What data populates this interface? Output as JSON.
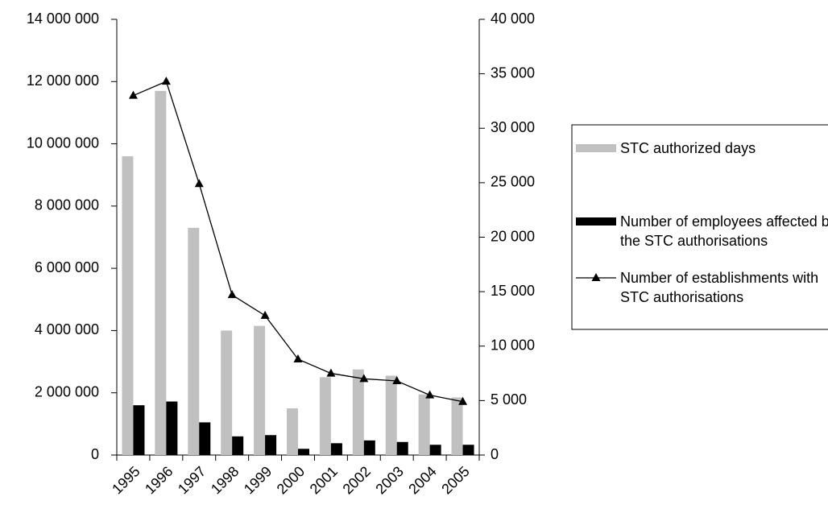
{
  "chart_data": {
    "type": "bar",
    "categories": [
      "1995",
      "1996",
      "1997",
      "1998",
      "1999",
      "2000",
      "2001",
      "2002",
      "2003",
      "2004",
      "2005"
    ],
    "series": [
      {
        "name": "STC authorized days",
        "color": "#c0c0c0",
        "values": [
          9600000,
          11700000,
          7300000,
          4000000,
          4150000,
          1500000,
          2500000,
          2750000,
          2550000,
          1950000,
          1850000
        ]
      },
      {
        "name": "Number of employees affected by the STC authorisations",
        "color": "#000000",
        "values": [
          1600000,
          1720000,
          1050000,
          600000,
          640000,
          200000,
          380000,
          470000,
          420000,
          330000,
          330000
        ]
      },
      {
        "name": "Number of establishments with STC authorisations",
        "color": "#000000",
        "type": "line",
        "axis": "y2",
        "values": [
          33000,
          34300,
          24900,
          14700,
          12800,
          8800,
          7500,
          7000,
          6800,
          5500,
          4900
        ]
      }
    ],
    "ylim": [
      0,
      14000000
    ],
    "yticks": [
      0,
      {
        "value": 2000000,
        "label": "2 000 000"
      },
      {
        "value": 4000000,
        "label": "4 000 000"
      },
      {
        "value": 6000000,
        "label": "6 000 000"
      },
      {
        "value": 8000000,
        "label": "8 000 000"
      },
      {
        "value": 10000000,
        "label": "10 000 000"
      },
      {
        "value": 12000000,
        "label": "12 000 000"
      },
      {
        "value": 14000000,
        "label": "14 000 000"
      }
    ],
    "y2lim": [
      0,
      40000
    ],
    "y2ticks": [
      0,
      {
        "value": 5000,
        "label": "5 000"
      },
      {
        "value": 10000,
        "label": "10 000"
      },
      {
        "value": 15000,
        "label": "15 000"
      },
      {
        "value": 20000,
        "label": "20 000"
      },
      {
        "value": 25000,
        "label": "25 000"
      },
      {
        "value": 30000,
        "label": "30 000"
      },
      {
        "value": 35000,
        "label": "35 000"
      },
      {
        "value": 40000,
        "label": "40 000"
      }
    ],
    "grid": false
  }
}
